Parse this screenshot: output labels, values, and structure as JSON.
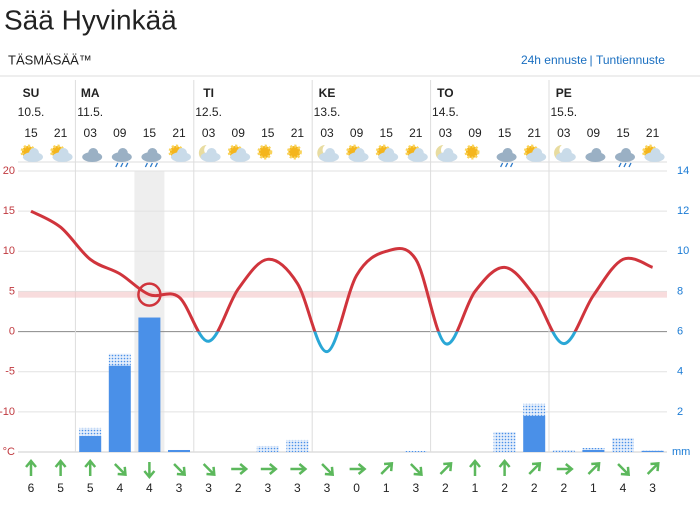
{
  "header": {
    "title": "Sää Hyvinkää",
    "subtitle": "TÄSMÄSÄÄ™",
    "links": [
      "24h ennuste",
      "Tuntiennuste"
    ],
    "separator": "|"
  },
  "chart_data": {
    "type": "weather",
    "days": [
      {
        "name": "SU",
        "date": "10.5.",
        "start": 0
      },
      {
        "name": "MA",
        "date": "11.5.",
        "start": 2
      },
      {
        "name": "TI",
        "date": "12.5.",
        "start": 6
      },
      {
        "name": "KE",
        "date": "13.5.",
        "start": 10
      },
      {
        "name": "TO",
        "date": "14.5.",
        "start": 14
      },
      {
        "name": "PE",
        "date": "15.5.",
        "start": 18
      }
    ],
    "hours": [
      "15",
      "21",
      "03",
      "09",
      "15",
      "21",
      "03",
      "09",
      "15",
      "21",
      "03",
      "09",
      "15",
      "21",
      "03",
      "09",
      "15",
      "21",
      "03",
      "09",
      "15",
      "21"
    ],
    "temperature": {
      "color": "#d0343c",
      "cold_color": "#2aa7d6",
      "values": [
        15,
        13,
        9,
        7.2,
        4.6,
        4.3,
        -1.2,
        5.3,
        9,
        6,
        -2.5,
        7,
        10,
        9,
        -1.5,
        5,
        8,
        4.5,
        -1.5,
        4.5,
        9,
        8
      ]
    },
    "precipitation": {
      "color": "#4a90e8",
      "values": [
        0,
        0,
        0.8,
        4.3,
        6.7,
        0.1,
        0,
        0,
        0,
        0,
        0,
        0,
        0,
        0,
        0,
        0,
        0,
        1.8,
        0,
        0.1,
        0,
        0.05
      ],
      "max_values": [
        0,
        0,
        1.2,
        4.9,
        6.7,
        0.1,
        0,
        0,
        0.3,
        0.6,
        0,
        0,
        0,
        0.05,
        0,
        0,
        1.0,
        2.4,
        0.1,
        0.2,
        0.7,
        0.1
      ]
    },
    "wind": {
      "speeds": [
        6,
        5,
        5,
        4,
        4,
        3,
        3,
        2,
        3,
        3,
        3,
        0,
        1,
        3,
        2,
        1,
        2,
        2,
        2,
        1,
        4,
        3
      ],
      "directions": [
        0,
        0,
        0,
        135,
        180,
        135,
        135,
        90,
        90,
        90,
        135,
        90,
        45,
        135,
        45,
        0,
        0,
        45,
        90,
        45,
        135,
        45
      ]
    },
    "ylim": [
      -15,
      20
    ],
    "yticks": [
      20,
      15,
      10,
      5,
      0,
      -5,
      -10
    ],
    "y_unit": "°C",
    "y2lim": [
      0,
      14
    ],
    "y2ticks": [
      14,
      12,
      10,
      8,
      6,
      4,
      2
    ],
    "y2_unit": "mm"
  }
}
